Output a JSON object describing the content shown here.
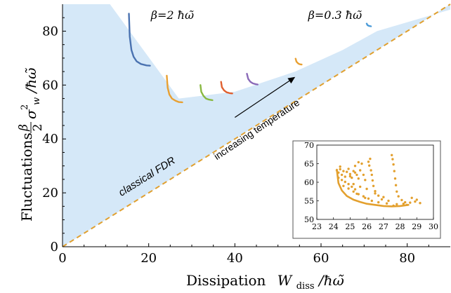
{
  "chart_data": {
    "type": "line",
    "xlabel": {
      "main": "Dissipation",
      "symbol": "W",
      "sub": "diss",
      "unit": "/ħω̃"
    },
    "ylabel": {
      "main": "Fluctuations",
      "frac_num": "β",
      "frac_den": "2",
      "symbol": "σ",
      "sup": "2",
      "sub": "w",
      "unit": "/ħω̃"
    },
    "xlim": [
      0,
      90
    ],
    "ylim": [
      0,
      90
    ],
    "xticks": [
      "0",
      "20",
      "40",
      "60",
      "80"
    ],
    "yticks": [
      "0",
      "20",
      "40",
      "60",
      "80"
    ],
    "xtick_values": [
      0,
      20,
      40,
      60,
      80
    ],
    "ytick_values": [
      0,
      20,
      40,
      60,
      80
    ],
    "classical_fdr": {
      "label": "classical FDR",
      "x": [
        0,
        90
      ],
      "y": [
        0,
        90
      ],
      "color": "#e0a030"
    },
    "allowed_region": {
      "color": "#d5e8f8",
      "x": [
        0,
        11,
        27,
        40,
        54,
        65,
        73,
        90,
        90,
        0
      ],
      "y": [
        90,
        90,
        55,
        57.5,
        65,
        73,
        80,
        88,
        90,
        0
      ]
    },
    "annotations": {
      "beta_left": "β=2 ħω̃",
      "beta_right": "β=0.3 ħω̃",
      "arrow_label": "increasing temperature",
      "arrow": {
        "from": [
          40,
          48
        ],
        "to": [
          54,
          63
        ]
      }
    },
    "series": [
      {
        "color": "#4a72b0",
        "x": [
          15.4,
          15.6,
          16.0,
          16.5,
          17.2,
          18.2,
          19.5,
          20.3
        ],
        "y": [
          86.5,
          78,
          73,
          70.5,
          68.8,
          67.8,
          67.3,
          67.2
        ]
      },
      {
        "color": "#e8a032",
        "x": [
          24.2,
          24.4,
          24.8,
          25.4,
          26.2,
          27.0,
          27.8
        ],
        "y": [
          63.5,
          59,
          56.5,
          55,
          54.2,
          53.7,
          53.6
        ]
      },
      {
        "color": "#88b840",
        "x": [
          32.0,
          32.2,
          32.7,
          33.3,
          34.0,
          34.8
        ],
        "y": [
          60,
          57.5,
          56,
          55,
          54.6,
          54.4
        ]
      },
      {
        "color": "#e06030",
        "x": [
          36.8,
          37.0,
          37.5,
          38.1,
          38.8,
          39.4
        ],
        "y": [
          61.2,
          59.2,
          58,
          57.3,
          57.0,
          56.9
        ]
      },
      {
        "color": "#8a6ab8",
        "x": [
          42.8,
          43.1,
          43.6,
          44.2,
          44.9,
          45.3
        ],
        "y": [
          64.2,
          62.3,
          61.2,
          60.6,
          60.3,
          60.2
        ]
      },
      {
        "color": "#e8a032",
        "x": [
          54.1,
          54.3,
          54.7,
          55.1,
          55.5
        ],
        "y": [
          69.8,
          68.7,
          68.0,
          67.7,
          67.6
        ]
      },
      {
        "color": "#4a9ad8",
        "x": [
          70.6,
          70.8,
          71.2,
          71.6
        ],
        "y": [
          82.8,
          82.2,
          81.9,
          81.8
        ]
      }
    ],
    "inset": {
      "xlim": [
        23,
        30
      ],
      "ylim": [
        50,
        70
      ],
      "xticks": [
        "23",
        "24",
        "25",
        "26",
        "27",
        "28",
        "29",
        "30"
      ],
      "yticks": [
        "50",
        "55",
        "60",
        "65",
        "70"
      ],
      "xtick_values": [
        23,
        24,
        25,
        26,
        27,
        28,
        29,
        30
      ],
      "ytick_values": [
        50,
        55,
        60,
        65,
        70
      ],
      "color": "#e3a02e",
      "envelope": {
        "x": [
          24.2,
          24.3,
          24.5,
          24.8,
          25.2,
          25.6,
          26.0,
          26.5,
          27.0,
          27.5,
          28.0,
          28.5
        ],
        "y": [
          63.4,
          59.8,
          57.8,
          56.3,
          55.3,
          54.7,
          54.2,
          53.9,
          53.6,
          53.5,
          53.6,
          53.9
        ]
      },
      "points": [
        [
          24.2,
          63.2
        ],
        [
          24.3,
          62.6
        ],
        [
          24.4,
          63.5
        ],
        [
          24.5,
          62.0
        ],
        [
          24.6,
          63.0
        ],
        [
          24.7,
          61.5
        ],
        [
          24.8,
          62.8
        ],
        [
          24.9,
          63.6
        ],
        [
          25.0,
          62.2
        ],
        [
          25.1,
          61.2
        ],
        [
          25.2,
          63.0
        ],
        [
          25.3,
          64.4
        ],
        [
          25.4,
          62.0
        ],
        [
          25.5,
          61.0
        ],
        [
          25.6,
          63.2
        ],
        [
          25.7,
          65.0
        ],
        [
          25.8,
          62.0
        ],
        [
          25.9,
          60.6
        ],
        [
          24.3,
          61.2
        ],
        [
          24.5,
          60.6
        ],
        [
          24.7,
          60.1
        ],
        [
          24.9,
          59.5
        ],
        [
          25.1,
          58.8
        ],
        [
          25.3,
          58.1
        ],
        [
          24.6,
          59.0
        ],
        [
          24.9,
          58.3
        ],
        [
          25.2,
          57.5
        ],
        [
          25.5,
          56.8
        ],
        [
          25.8,
          56.2
        ],
        [
          26.1,
          55.6
        ],
        [
          26.1,
          65.5
        ],
        [
          26.2,
          66.3
        ],
        [
          26.15,
          64.5
        ],
        [
          26.25,
          63.2
        ],
        [
          26.3,
          62.0
        ],
        [
          26.35,
          60.5
        ],
        [
          26.4,
          59.0
        ],
        [
          26.5,
          57.6
        ],
        [
          26.7,
          56.4
        ],
        [
          26.9,
          55.4
        ],
        [
          27.5,
          67.3
        ],
        [
          27.55,
          66.2
        ],
        [
          27.6,
          64.8
        ],
        [
          27.65,
          63.0
        ],
        [
          27.7,
          61.0
        ],
        [
          27.75,
          59.2
        ],
        [
          27.8,
          57.5
        ],
        [
          27.9,
          56.2
        ],
        [
          28.1,
          55.2
        ],
        [
          28.3,
          54.6
        ],
        [
          25.2,
          59.5
        ],
        [
          25.6,
          58.8
        ],
        [
          26.0,
          58.2
        ],
        [
          26.5,
          57.0
        ],
        [
          27.0,
          56.0
        ],
        [
          27.3,
          55.0
        ],
        [
          27.8,
          54.1
        ],
        [
          28.2,
          54.2
        ],
        [
          28.6,
          54.5
        ],
        [
          28.9,
          54.8
        ],
        [
          29.2,
          54.4
        ],
        [
          29.0,
          55.3
        ],
        [
          28.7,
          55.8
        ],
        [
          28.4,
          53.9
        ],
        [
          27.6,
          53.7
        ],
        [
          27.2,
          54.3
        ],
        [
          26.7,
          54.6
        ],
        [
          26.3,
          55.0
        ],
        [
          25.9,
          55.8
        ],
        [
          25.4,
          56.9
        ],
        [
          25.0,
          61.6
        ],
        [
          24.4,
          64.2
        ],
        [
          25.5,
          65.4
        ],
        [
          25.3,
          62.6
        ]
      ]
    }
  }
}
